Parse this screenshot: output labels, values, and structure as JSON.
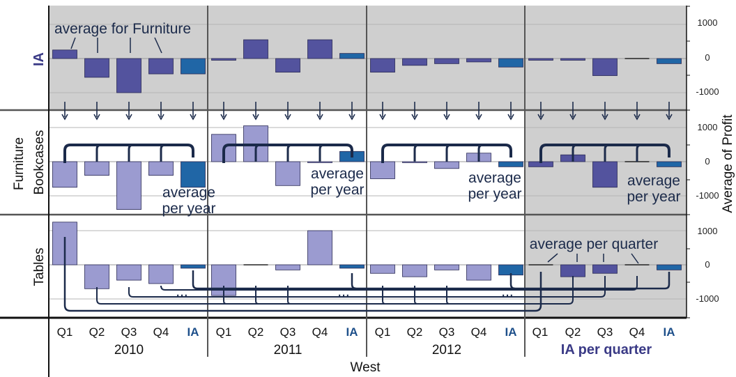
{
  "chart_data": {
    "type": "bar",
    "xlabel": "West",
    "ylabel": "Average of Profit",
    "row_title": "Furniture",
    "years": [
      "2010",
      "2011",
      "2012",
      "IA per quarter"
    ],
    "categories": [
      "Q1",
      "Q2",
      "Q3",
      "Q4",
      "IA"
    ],
    "yticks": [
      "1000",
      "0",
      "-1000"
    ],
    "ylim": [
      -1500,
      1500
    ],
    "rows": [
      {
        "name": "IA",
        "shaded": "all",
        "values": [
          [
            250,
            -550,
            -1000,
            -450,
            -450
          ],
          [
            -50,
            550,
            -400,
            550,
            150
          ],
          [
            -400,
            -200,
            -150,
            -100,
            -250
          ],
          [
            -50,
            -50,
            -500,
            0,
            -150
          ]
        ]
      },
      {
        "name": "Bookcases",
        "shaded": "last",
        "values": [
          [
            -750,
            -400,
            -1400,
            -400,
            -750
          ],
          [
            800,
            1050,
            -700,
            -30,
            300
          ],
          [
            -500,
            -30,
            -200,
            250,
            -150
          ],
          [
            -150,
            200,
            -750,
            0,
            -150
          ]
        ]
      },
      {
        "name": "Tables",
        "shaded": "last",
        "values": [
          [
            1250,
            -700,
            -450,
            -550,
            -100
          ],
          [
            -900,
            0,
            -150,
            1000,
            -100
          ],
          [
            -250,
            -350,
            -150,
            -450,
            -300
          ],
          [
            0,
            -350,
            -250,
            0,
            -150
          ]
        ]
      }
    ],
    "annotations": [
      "average for Furniture",
      "average",
      "per year",
      "average per quarter",
      "..."
    ]
  },
  "colors": {
    "shade": "#cfcfcf",
    "bar_light": "#9b9bd0",
    "bar_mid": "#53539e",
    "bar_ia": "#2066a6",
    "connector": "#1b2a4a",
    "ia_label": "#3a3a86"
  }
}
